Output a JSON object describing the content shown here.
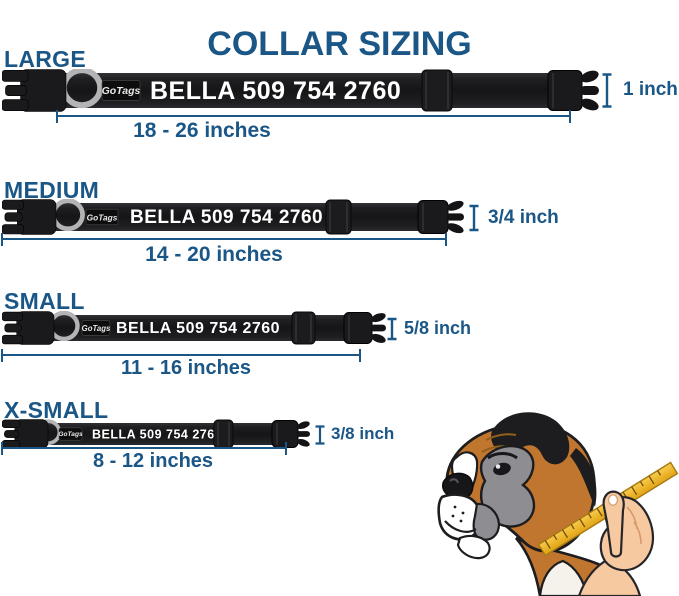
{
  "title": "COLLAR SIZING",
  "collar": {
    "brand": "GoTags",
    "personalization": "BELLA 509 754 2760"
  },
  "sizes": [
    {
      "label": "LARGE",
      "width": "1 inch",
      "range": "18 - 26 inches"
    },
    {
      "label": "MEDIUM",
      "width": "3/4 inch",
      "range": "14 - 20 inches"
    },
    {
      "label": "SMALL",
      "width": "5/8 inch",
      "range": "11 - 16 inches"
    },
    {
      "label": "X-SMALL",
      "width": "3/8 inch",
      "range": "8 - 12 inches"
    }
  ],
  "colors": {
    "accent_blue": "#1a5686",
    "collar_black": "#1b1b1d",
    "tape_yellow": "#f0b832",
    "dog_brown": "#c1762f"
  },
  "illustration": "boxer-dog-with-measuring-tape"
}
